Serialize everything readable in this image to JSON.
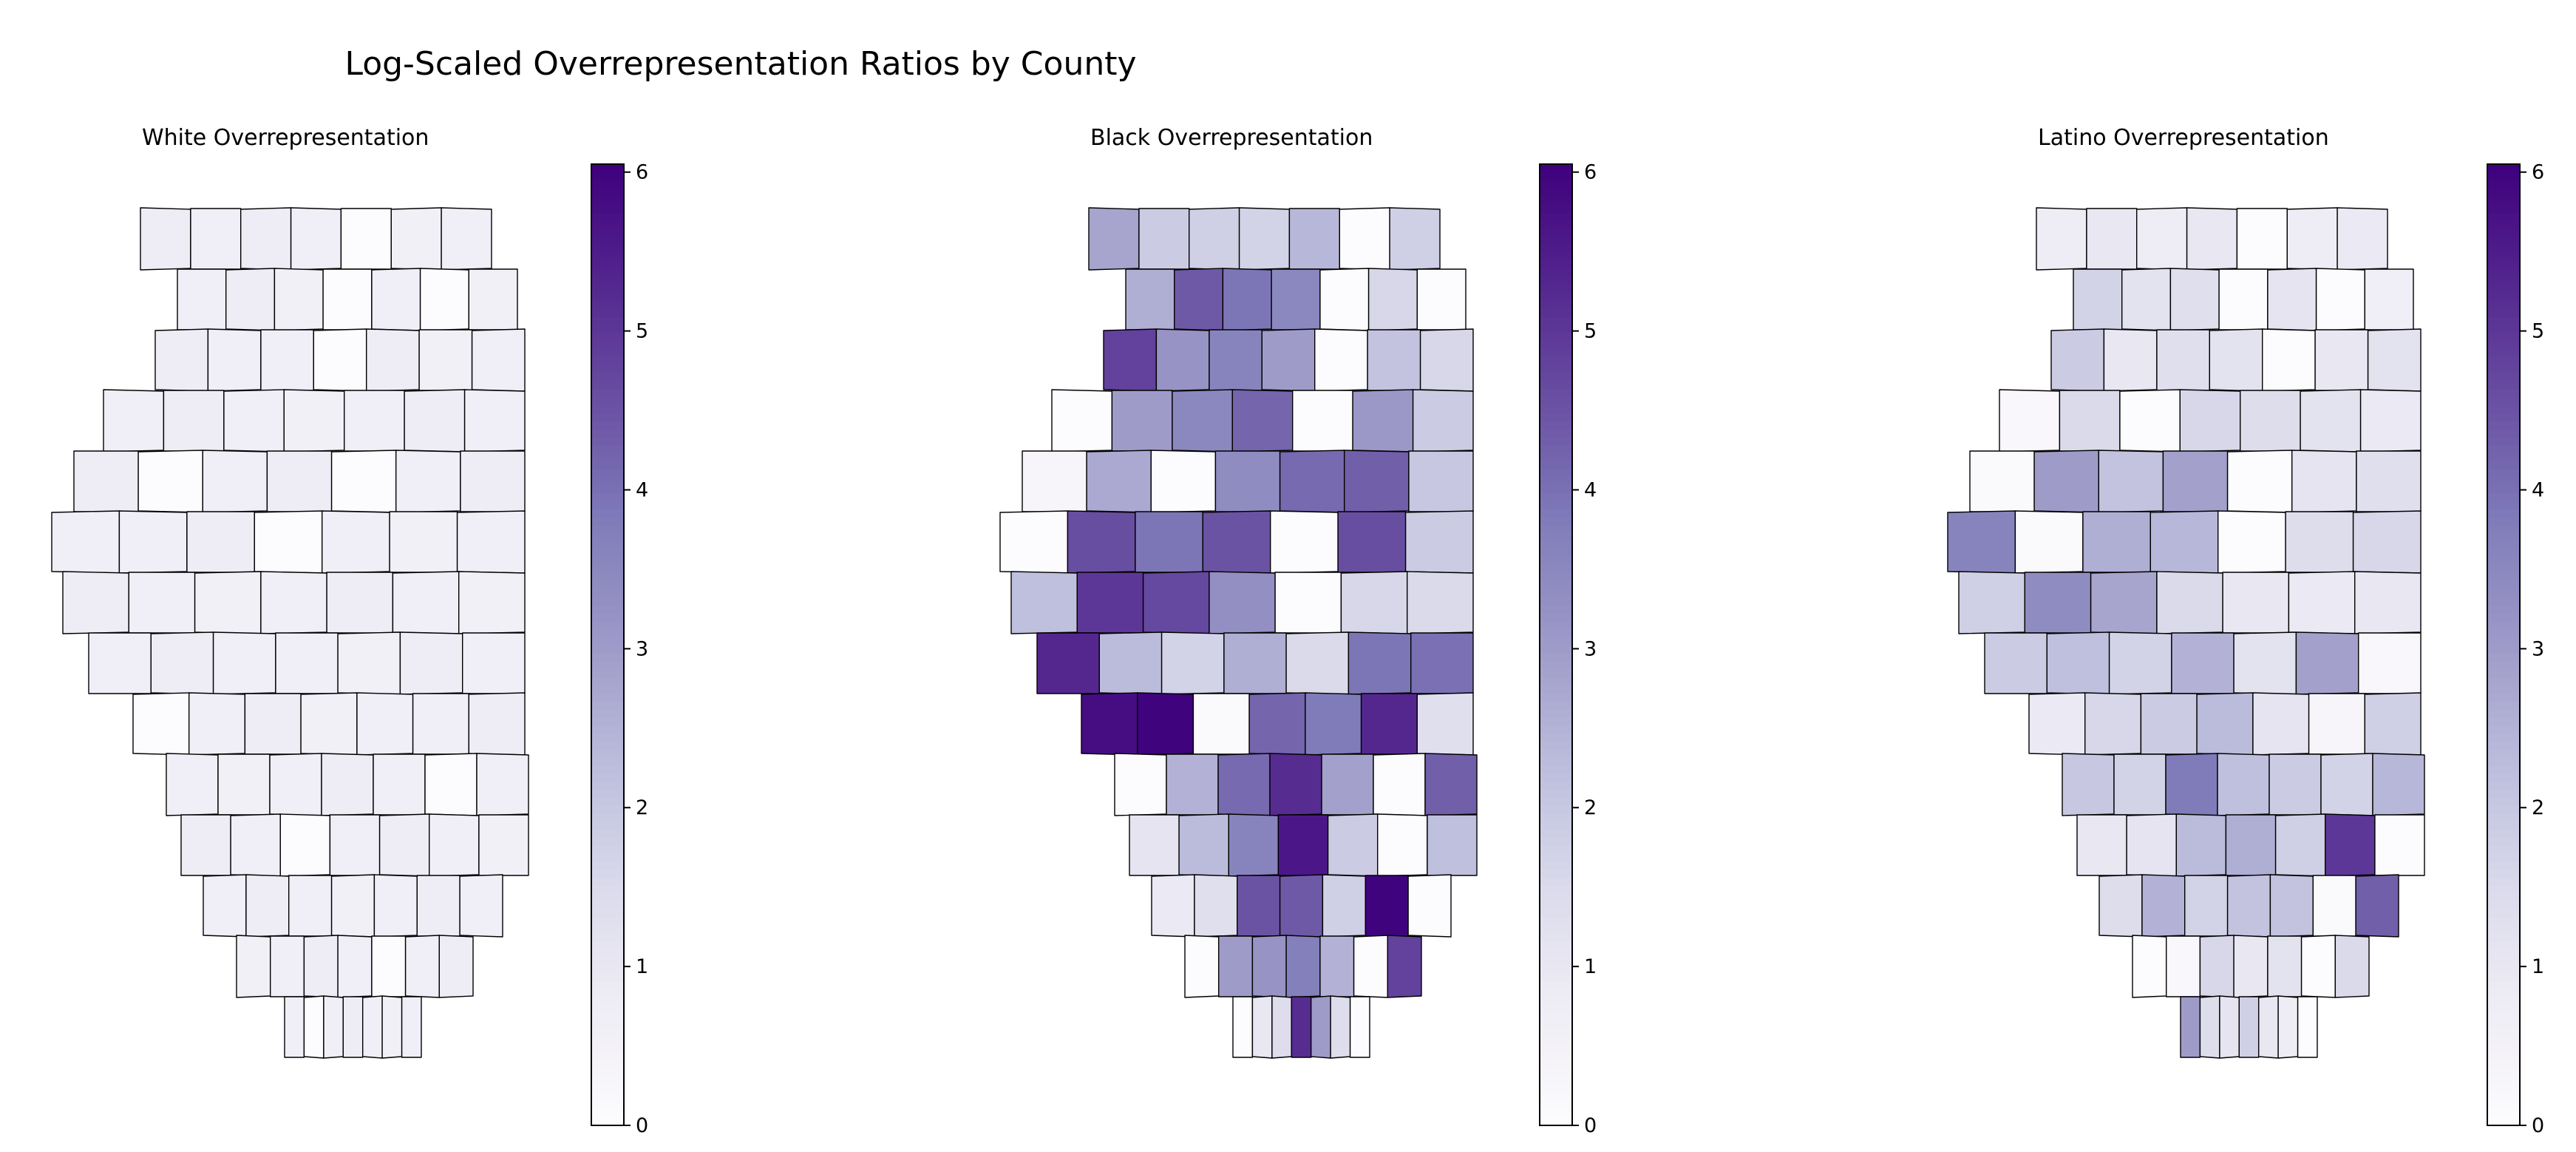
{
  "figure": {
    "title": "Log-Scaled Overrepresentation Ratios by County"
  },
  "colormap": {
    "name": "Purples",
    "stops": [
      "#fcfbfd",
      "#efedf5",
      "#dadaeb",
      "#bcbddc",
      "#9e9ac8",
      "#807dba",
      "#6a51a3",
      "#54278f",
      "#3f007d"
    ]
  },
  "chart_data": [
    {
      "type": "heatmap",
      "title": "White Overrepresentation",
      "colorbar": {
        "vmin": 0,
        "vmax": 6.05,
        "ticks": [
          "0",
          "1",
          "2",
          "3",
          "4",
          "5",
          "6"
        ]
      },
      "grid": [
        [
          0.8,
          0.7,
          0.8,
          0.7,
          0.0,
          0.6,
          0.7
        ],
        [
          0.7,
          0.8,
          0.6,
          0.0,
          0.7,
          0.0,
          0.6
        ],
        [
          0.8,
          0.7,
          0.7,
          0.0,
          0.8,
          0.6,
          0.7
        ],
        [
          0.7,
          0.8,
          0.7,
          0.6,
          0.7,
          0.8,
          0.7
        ],
        [
          0.8,
          0.0,
          0.7,
          0.8,
          0.0,
          0.7,
          0.8
        ],
        [
          0.7,
          0.7,
          0.8,
          0.0,
          0.7,
          0.6,
          0.7
        ],
        [
          0.8,
          0.7,
          0.6,
          0.7,
          0.8,
          0.7,
          0.6
        ],
        [
          0.7,
          0.8,
          0.7,
          0.7,
          0.6,
          0.8,
          0.7
        ],
        [
          0.0,
          0.7,
          0.8,
          0.6,
          0.7,
          0.7,
          0.8
        ],
        [
          0.7,
          0.6,
          0.7,
          0.8,
          0.7,
          0.0,
          0.7
        ],
        [
          0.8,
          0.7,
          0.0,
          0.7,
          0.8,
          0.7,
          0.6
        ],
        [
          0.7,
          0.8,
          0.7,
          0.6,
          0.7,
          0.8,
          0.7
        ],
        [
          0.6,
          0.7,
          0.8,
          0.7,
          0.0,
          0.7,
          0.8
        ],
        [
          0.7,
          0.0,
          0.7,
          0.8,
          0.7,
          0.6,
          0.7
        ]
      ]
    },
    {
      "type": "heatmap",
      "title": "Black Overrepresentation",
      "colorbar": {
        "vmin": 0,
        "vmax": 6.05,
        "ticks": [
          "0",
          "1",
          "2",
          "3",
          "4",
          "5",
          "6"
        ]
      },
      "grid": [
        [
          2.8,
          1.9,
          1.8,
          1.7,
          2.4,
          0.0,
          1.8
        ],
        [
          2.6,
          4.4,
          3.9,
          3.5,
          0.0,
          1.6,
          0.0
        ],
        [
          4.8,
          3.2,
          3.6,
          3.0,
          0.0,
          2.1,
          1.6
        ],
        [
          0.0,
          3.0,
          3.5,
          4.2,
          0.0,
          3.1,
          1.9
        ],
        [
          0.3,
          2.7,
          0.0,
          3.4,
          4.1,
          4.3,
          2.0
        ],
        [
          0.0,
          4.6,
          3.9,
          4.5,
          0.0,
          4.6,
          1.9
        ],
        [
          2.2,
          5.0,
          4.7,
          3.3,
          0.0,
          1.6,
          1.5
        ],
        [
          5.3,
          2.3,
          1.7,
          2.6,
          1.5,
          3.9,
          4.0
        ],
        [
          5.8,
          6.0,
          0.1,
          4.2,
          3.8,
          5.3,
          1.3
        ],
        [
          0.0,
          2.5,
          4.1,
          5.2,
          2.9,
          0.0,
          4.3
        ],
        [
          1.1,
          2.3,
          3.6,
          5.6,
          1.9,
          0.0,
          2.2
        ],
        [
          0.9,
          1.3,
          4.5,
          4.4,
          1.8,
          6.0,
          0.0
        ],
        [
          0.0,
          3.0,
          3.2,
          3.7,
          2.5,
          0.0,
          4.8
        ],
        [
          0.0,
          1.0,
          1.4,
          5.2,
          3.0,
          1.4,
          0.0
        ]
      ]
    },
    {
      "type": "heatmap",
      "title": "Latino Overrepresentation",
      "colorbar": {
        "vmin": 0,
        "vmax": 6.05,
        "ticks": [
          "0",
          "1",
          "2",
          "3",
          "4",
          "5",
          "6"
        ]
      },
      "grid": [
        [
          0.8,
          1.0,
          0.8,
          1.0,
          0.0,
          0.8,
          0.9
        ],
        [
          1.7,
          1.2,
          1.3,
          0.0,
          1.1,
          0.0,
          0.7
        ],
        [
          1.9,
          1.0,
          1.3,
          1.2,
          0.0,
          1.0,
          1.2
        ],
        [
          0.2,
          1.5,
          0.0,
          1.6,
          1.4,
          1.2,
          0.9
        ],
        [
          0.1,
          3.0,
          2.1,
          2.9,
          0.0,
          1.1,
          1.3
        ],
        [
          3.6,
          0.1,
          2.6,
          2.4,
          0.0,
          1.4,
          1.6
        ],
        [
          1.8,
          3.4,
          2.8,
          1.5,
          1.0,
          0.9,
          1.0
        ],
        [
          1.9,
          2.2,
          1.7,
          2.5,
          1.2,
          2.9,
          0.2
        ],
        [
          0.9,
          1.6,
          1.9,
          2.3,
          1.1,
          0.3,
          1.8
        ],
        [
          2.0,
          1.7,
          3.8,
          2.2,
          1.9,
          1.7,
          2.4
        ],
        [
          1.0,
          1.1,
          2.3,
          2.6,
          1.8,
          5.0,
          0.0
        ],
        [
          1.4,
          2.5,
          1.7,
          2.1,
          2.1,
          0.1,
          4.3
        ],
        [
          0.0,
          0.2,
          1.6,
          1.0,
          1.2,
          0.0,
          1.5
        ],
        [
          3.0,
          1.4,
          1.1,
          1.8,
          1.0,
          0.8,
          0.0
        ]
      ]
    }
  ]
}
